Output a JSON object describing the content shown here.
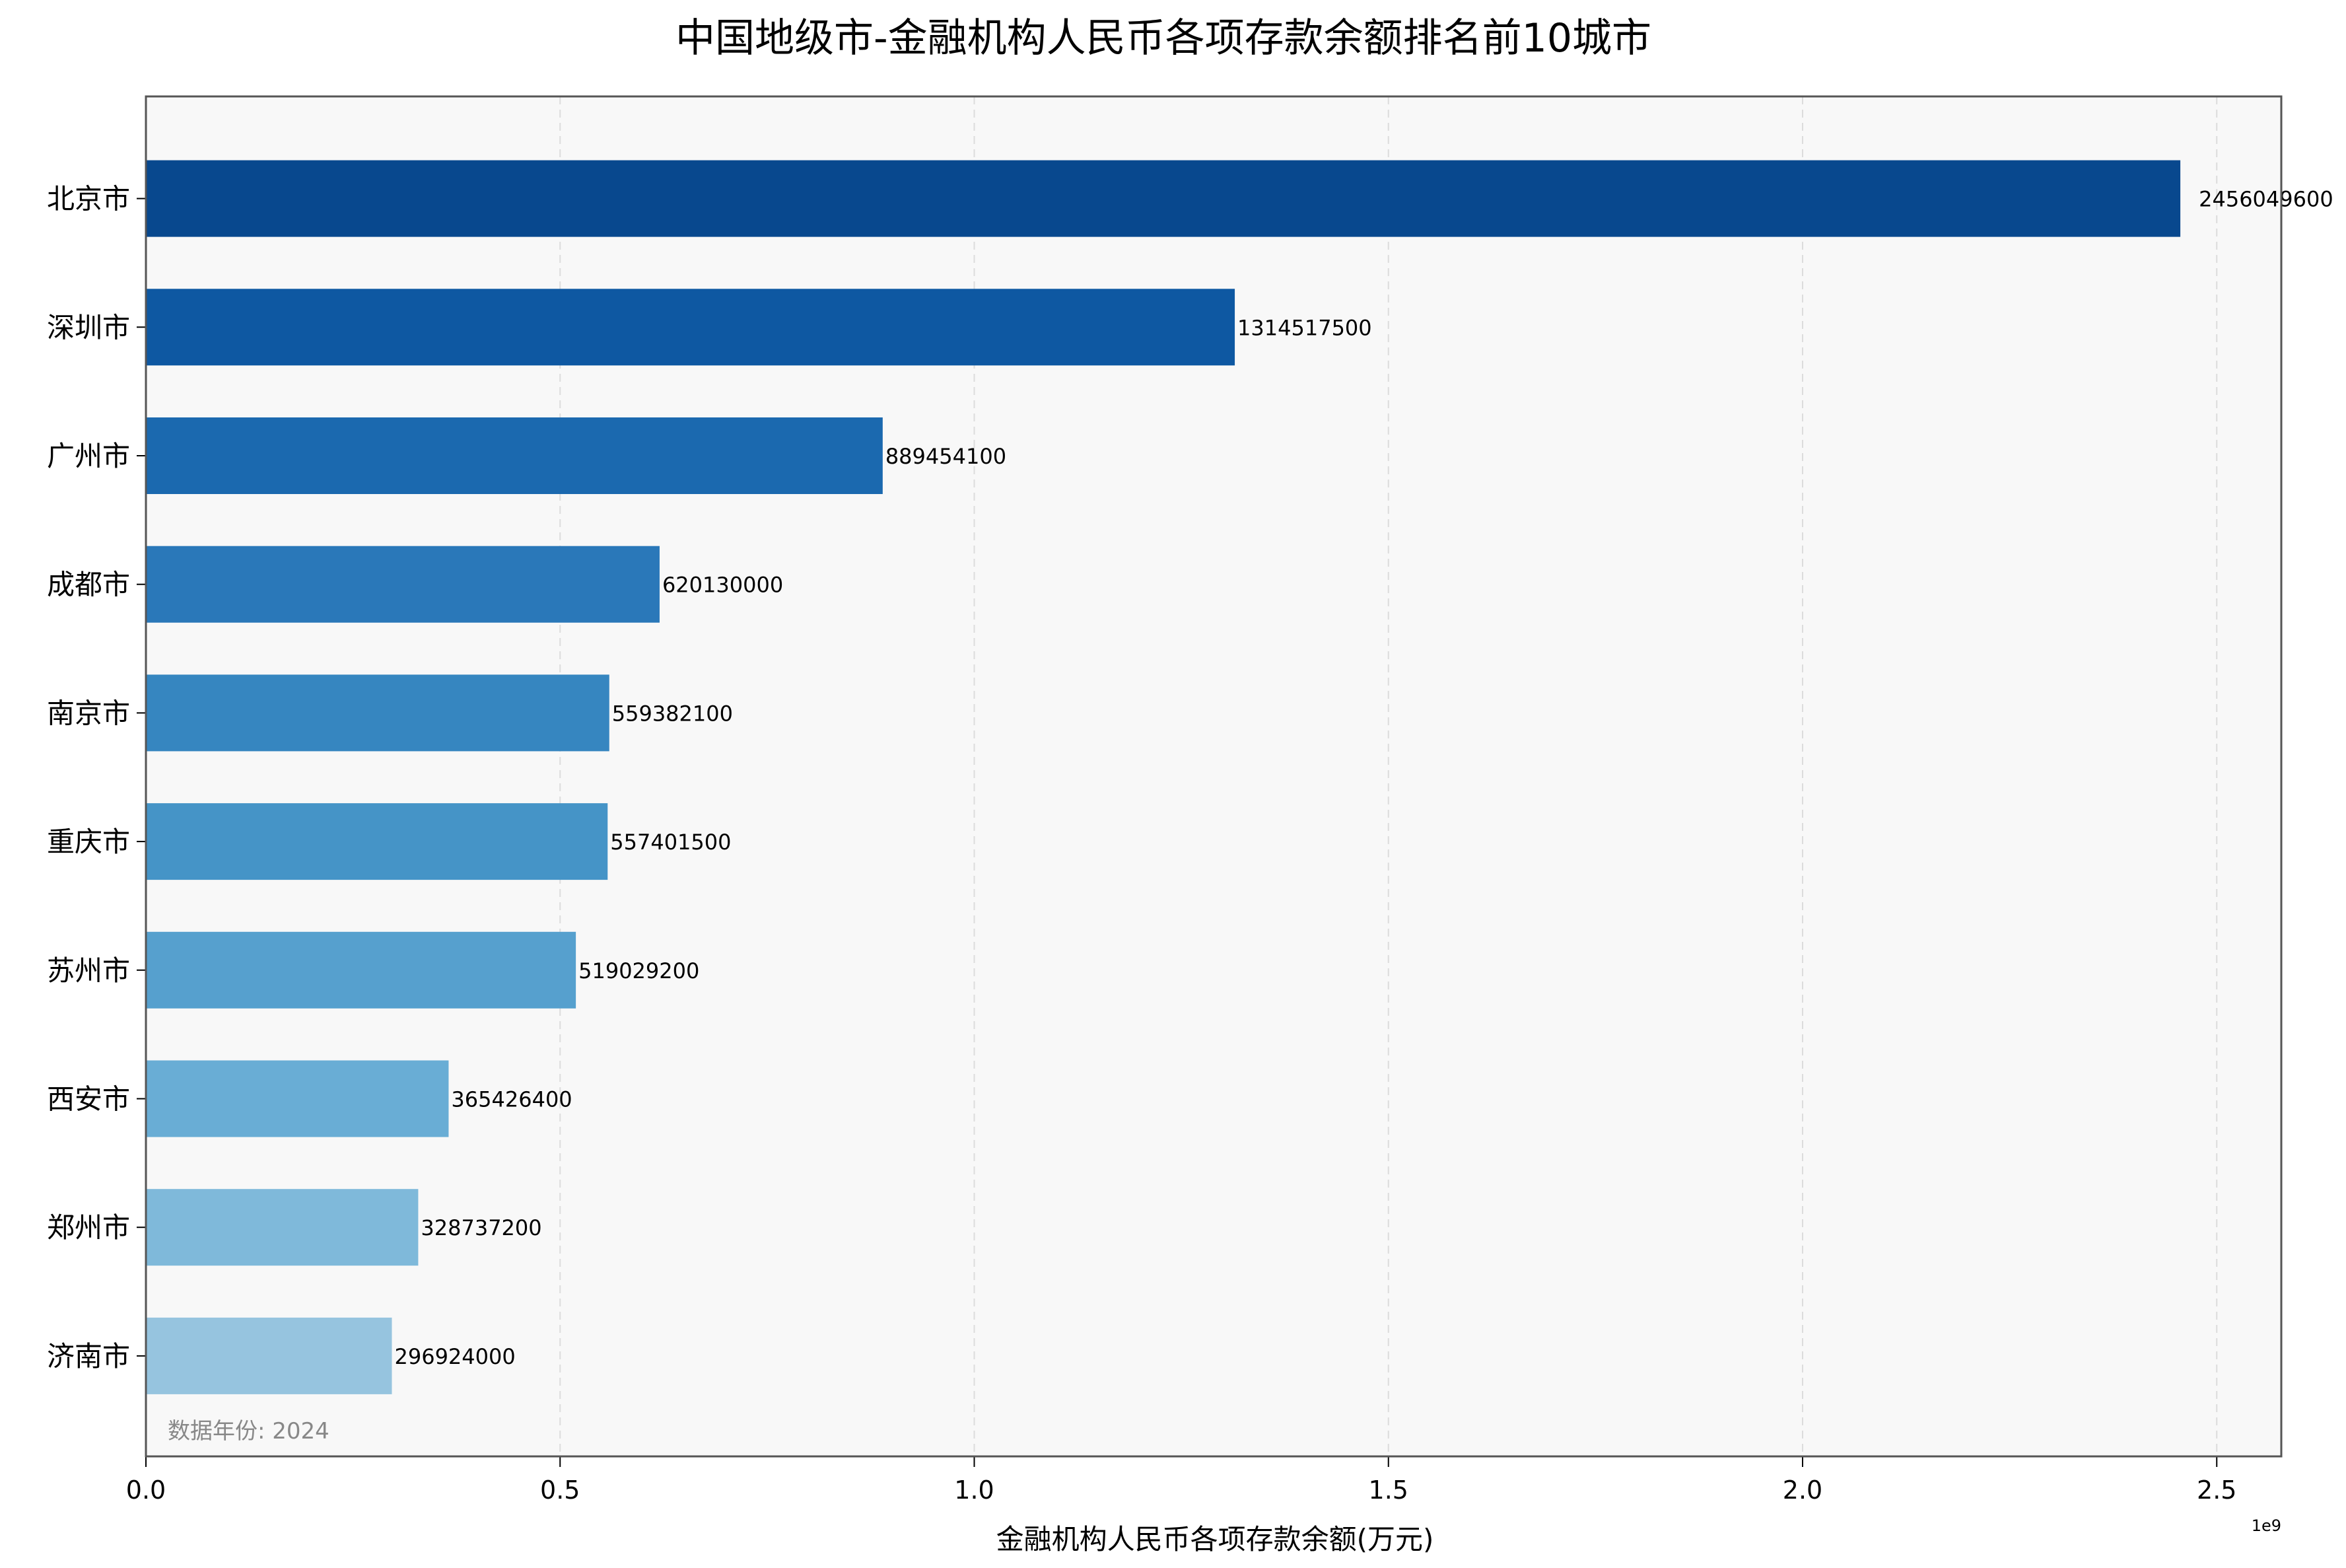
{
  "chart_data": {
    "type": "bar",
    "orientation": "horizontal",
    "title": "中国地级市-金融机构人民币各项存款余额排名前10城市",
    "xlabel": "金融机构人民币各项存款余额(万元)",
    "ylabel": "",
    "x_offset_label": "1e9",
    "xlim": [
      0,
      2580000000.0
    ],
    "xticks": [
      0,
      500000000.0,
      1000000000.0,
      1500000000.0,
      2000000000.0,
      2500000000.0
    ],
    "xtick_labels": [
      "0.0",
      "0.5",
      "1.0",
      "1.5",
      "2.0",
      "2.5"
    ],
    "grid": "x-dashed",
    "annotation": "数据年份: 2024",
    "categories": [
      "北京市",
      "深圳市",
      "广州市",
      "成都市",
      "南京市",
      "重庆市",
      "苏州市",
      "西安市",
      "郑州市",
      "济南市"
    ],
    "values": [
      2456049600,
      1314517500,
      889454100,
      620130000,
      559382100,
      557401500,
      519029200,
      365426400,
      328737200,
      296924000
    ],
    "value_labels": [
      "2456049600",
      "1314517500",
      "889454100",
      "620130000",
      "559382100",
      "557401500",
      "519029200",
      "365426400",
      "328737200",
      "296924000"
    ],
    "colors": [
      "#08488e",
      "#0e58a2",
      "#1b69af",
      "#2a78b9",
      "#3686c0",
      "#4594c7",
      "#56a0ce",
      "#69add5",
      "#7fb9da",
      "#96c4df"
    ],
    "background": "#f8f8f8"
  }
}
